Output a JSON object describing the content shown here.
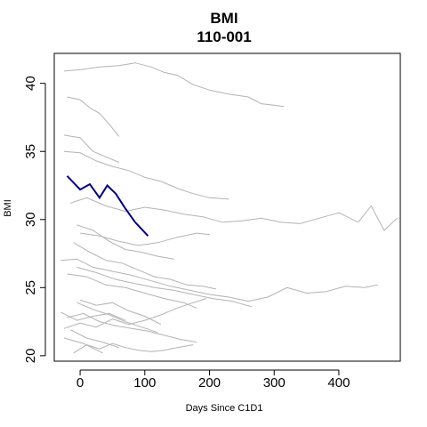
{
  "chart_data": {
    "type": "line",
    "title": "BMI",
    "subtitle": "110-001",
    "xlabel": "Days Since C1D1",
    "ylabel": "BMI",
    "xlim": [
      -40,
      495
    ],
    "ylim": [
      19.6,
      42.2
    ],
    "x_ticks": [
      0,
      100,
      200,
      300,
      400
    ],
    "y_ticks": [
      20,
      25,
      30,
      35,
      40
    ],
    "grid": false,
    "legend": "none",
    "colors": {
      "background_series": "#b3b3b3",
      "highlight_series": "#00007f"
    },
    "highlight_series": {
      "name": "110-001",
      "x": [
        -20,
        0,
        15,
        30,
        42,
        55,
        70,
        85,
        105
      ],
      "y": [
        33.2,
        32.2,
        32.6,
        31.6,
        32.5,
        31.9,
        30.8,
        29.8,
        28.8
      ]
    },
    "background_series": [
      {
        "x": [
          -25,
          0,
          30,
          60,
          85,
          110,
          130,
          150,
          175,
          200,
          230,
          260,
          280,
          300,
          315
        ],
        "y": [
          40.9,
          41.0,
          41.2,
          41.3,
          41.5,
          41.2,
          40.8,
          40.6,
          39.9,
          39.5,
          39.2,
          39.0,
          38.5,
          38.4,
          38.3
        ]
      },
      {
        "x": [
          -20,
          0,
          15,
          30,
          45,
          60
        ],
        "y": [
          39.0,
          38.8,
          38.2,
          37.8,
          37.0,
          36.1
        ]
      },
      {
        "x": [
          -25,
          0,
          20,
          40,
          60
        ],
        "y": [
          36.2,
          36.0,
          35.0,
          34.6,
          34.2
        ]
      },
      {
        "x": [
          -25,
          0,
          25,
          50,
          75,
          100,
          125,
          150,
          175,
          200,
          230
        ],
        "y": [
          35.0,
          34.9,
          34.3,
          33.9,
          33.6,
          33.1,
          32.8,
          32.3,
          31.9,
          31.6,
          31.5
        ]
      },
      {
        "x": [
          -15,
          10,
          40,
          70,
          100,
          130,
          160,
          190,
          220,
          250,
          280,
          310,
          340,
          370,
          400,
          430,
          450,
          470,
          490
        ],
        "y": [
          31.2,
          31.6,
          31.0,
          30.6,
          30.9,
          30.7,
          30.4,
          30.2,
          29.8,
          29.9,
          30.1,
          29.8,
          29.7,
          30.1,
          30.5,
          29.8,
          31.0,
          29.2,
          30.1
        ]
      },
      {
        "x": [
          0,
          30,
          60,
          90,
          120,
          150,
          180,
          200
        ],
        "y": [
          29.0,
          28.8,
          28.4,
          28.1,
          28.3,
          28.7,
          29.0,
          28.9
        ]
      },
      {
        "x": [
          -5,
          20,
          45,
          70,
          95,
          120,
          145
        ],
        "y": [
          29.6,
          29.2,
          28.4,
          27.8,
          27.6,
          27.3,
          27.1
        ]
      },
      {
        "x": [
          -30,
          -5,
          20,
          50,
          80,
          110,
          140,
          170,
          200,
          230,
          260,
          290,
          320,
          350,
          380,
          410,
          440,
          460
        ],
        "y": [
          27.0,
          27.1,
          26.5,
          26.2,
          25.9,
          25.5,
          25.1,
          24.8,
          24.5,
          24.3,
          24.0,
          24.3,
          25.0,
          24.6,
          24.7,
          25.1,
          25.0,
          25.2
        ]
      },
      {
        "x": [
          -10,
          15,
          40,
          65,
          90,
          115,
          140,
          165,
          190,
          210
        ],
        "y": [
          28.3,
          27.6,
          27.0,
          26.8,
          26.3,
          25.8,
          25.6,
          25.2,
          25.1,
          24.9
        ]
      },
      {
        "x": [
          -5,
          25,
          55,
          85,
          115,
          145,
          175,
          205,
          235,
          265
        ],
        "y": [
          26.5,
          26.1,
          25.6,
          25.3,
          25.0,
          24.8,
          24.5,
          24.2,
          24.0,
          23.6
        ]
      },
      {
        "x": [
          -20,
          10,
          40,
          70,
          100,
          130,
          160,
          180
        ],
        "y": [
          26.0,
          25.8,
          25.2,
          25.0,
          24.6,
          24.2,
          23.9,
          23.5
        ]
      },
      {
        "x": [
          -30,
          -5,
          20,
          45,
          70
        ],
        "y": [
          23.2,
          22.6,
          22.9,
          23.1,
          22.6
        ]
      },
      {
        "x": [
          -25,
          0,
          25,
          50,
          75,
          100,
          125,
          150,
          175,
          195
        ],
        "y": [
          22.0,
          22.4,
          22.1,
          22.7,
          22.3,
          22.6,
          23.0,
          23.5,
          23.9,
          24.2
        ]
      },
      {
        "x": [
          -20,
          5,
          30,
          55,
          80,
          105,
          130,
          155,
          180
        ],
        "y": [
          22.8,
          23.1,
          22.5,
          22.2,
          22.0,
          21.8,
          21.5,
          21.2,
          21.0
        ]
      },
      {
        "x": [
          -15,
          10,
          35,
          60
        ],
        "y": [
          21.9,
          21.3,
          21.0,
          20.6
        ]
      },
      {
        "x": [
          -10,
          10,
          30,
          50,
          70,
          90,
          110,
          130,
          150,
          175
        ],
        "y": [
          20.2,
          20.8,
          20.5,
          20.9,
          20.6,
          20.4,
          20.3,
          20.4,
          20.6,
          20.8
        ]
      },
      {
        "x": [
          -5,
          20,
          45,
          70,
          95,
          120
        ],
        "y": [
          23.9,
          23.4,
          23.0,
          22.5,
          22.1,
          21.7
        ]
      },
      {
        "x": [
          0,
          25,
          50,
          75,
          100,
          125
        ],
        "y": [
          24.1,
          23.7,
          23.9,
          23.3,
          22.9,
          22.3
        ]
      },
      {
        "x": [
          -25,
          5,
          35
        ],
        "y": [
          21.3,
          20.9,
          20.2
        ]
      }
    ]
  }
}
